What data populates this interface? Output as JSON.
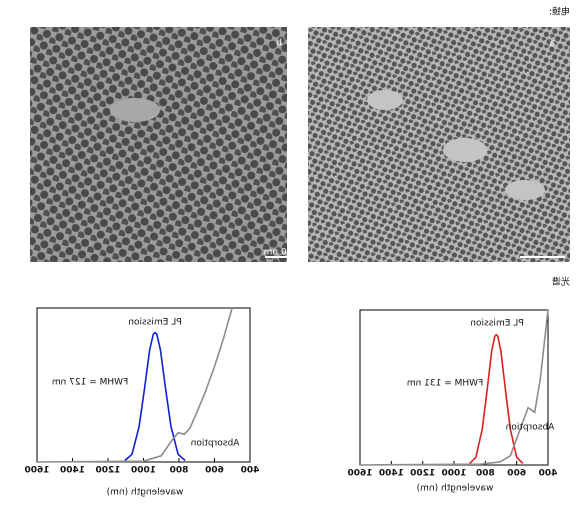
{
  "labels": {
    "tem": "电镜:",
    "spectra": "光谱"
  },
  "images": [
    {
      "label": "a"
    },
    {
      "label": "b",
      "scale_bar": "20 nm"
    }
  ],
  "chart_data": [
    {
      "type": "line",
      "xlabel": "wavelength (nm)",
      "xlim": [
        400,
        1600
      ],
      "xticks": [
        400,
        600,
        800,
        1000,
        1200,
        1400,
        1600
      ],
      "ylim": [
        0,
        1
      ],
      "annotations": [
        "PL Emission",
        "FWHM = 131 nm",
        "Absorption"
      ],
      "series": [
        {
          "color": "#e02020",
          "x": [
            560,
            600,
            640,
            670,
            700,
            720,
            730,
            740,
            760,
            790,
            820,
            860,
            900
          ],
          "values": [
            0.01,
            0.05,
            0.23,
            0.47,
            0.73,
            0.83,
            0.84,
            0.83,
            0.73,
            0.47,
            0.23,
            0.05,
            0.01
          ]
        },
        {
          "color": "#8c8c8c",
          "x": [
            400,
            450,
            485,
            527,
            578,
            640,
            705,
            830,
            1600
          ],
          "values": [
            1.0,
            0.55,
            0.34,
            0.37,
            0.23,
            0.06,
            0.02,
            0.005,
            0
          ]
        }
      ]
    },
    {
      "type": "line",
      "xlabel": "wavelength (nm)",
      "xlim": [
        400,
        1600
      ],
      "xticks": [
        400,
        600,
        800,
        1000,
        1200,
        1400,
        1600
      ],
      "ylim": [
        0,
        1
      ],
      "annotations": [
        "PL Emission",
        "FWHM = 127 nm",
        "Absorption"
      ],
      "series": [
        {
          "color": "#1020d0",
          "x": [
            765,
            805,
            845,
            875,
            905,
            925,
            935,
            945,
            965,
            995,
            1025,
            1065,
            1105
          ],
          "values": [
            0.01,
            0.05,
            0.23,
            0.47,
            0.73,
            0.83,
            0.84,
            0.83,
            0.73,
            0.47,
            0.23,
            0.05,
            0.01
          ]
        },
        {
          "color": "#8c8c8c",
          "x": [
            501,
            550,
            600,
            650,
            700,
            738,
            770,
            805,
            840,
            900,
            1000,
            1600
          ],
          "values": [
            1.0,
            0.8,
            0.62,
            0.46,
            0.32,
            0.22,
            0.18,
            0.19,
            0.14,
            0.04,
            0.005,
            0
          ]
        }
      ]
    }
  ]
}
